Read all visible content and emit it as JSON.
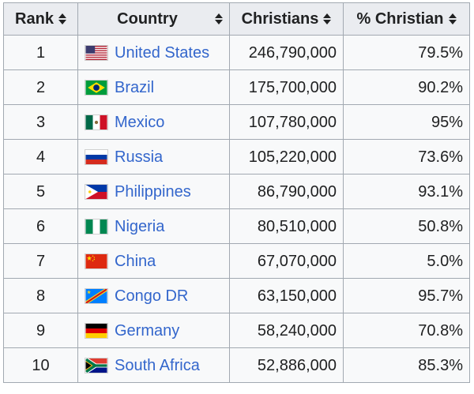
{
  "table": {
    "headers": {
      "rank": "Rank",
      "country": "Country",
      "christians": "Christians",
      "pct": "% Christian"
    },
    "sort_icon": "sort-arrows-icon",
    "link_color": "#3366cc",
    "rows": [
      {
        "rank": "1",
        "country": "United States",
        "flag": "us",
        "christians": "246,790,000",
        "pct": "79.5%"
      },
      {
        "rank": "2",
        "country": "Brazil",
        "flag": "br",
        "christians": "175,700,000",
        "pct": "90.2%"
      },
      {
        "rank": "3",
        "country": "Mexico",
        "flag": "mx",
        "christians": "107,780,000",
        "pct": "95%"
      },
      {
        "rank": "4",
        "country": "Russia",
        "flag": "ru",
        "christians": "105,220,000",
        "pct": "73.6%"
      },
      {
        "rank": "5",
        "country": "Philippines",
        "flag": "ph",
        "christians": "86,790,000",
        "pct": "93.1%"
      },
      {
        "rank": "6",
        "country": "Nigeria",
        "flag": "ng",
        "christians": "80,510,000",
        "pct": "50.8%"
      },
      {
        "rank": "7",
        "country": "China",
        "flag": "cn",
        "christians": "67,070,000",
        "pct": "5.0%"
      },
      {
        "rank": "8",
        "country": "Congo DR",
        "flag": "cd",
        "christians": "63,150,000",
        "pct": "95.7%"
      },
      {
        "rank": "9",
        "country": "Germany",
        "flag": "de",
        "christians": "58,240,000",
        "pct": "70.8%"
      },
      {
        "rank": "10",
        "country": "South Africa",
        "flag": "za",
        "christians": "52,886,000",
        "pct": "85.3%"
      }
    ]
  }
}
